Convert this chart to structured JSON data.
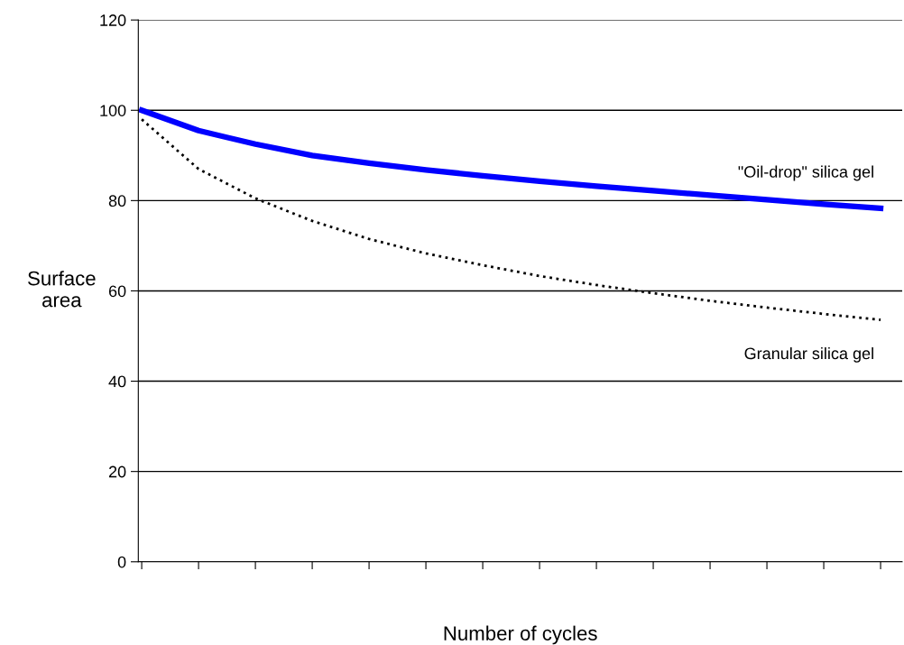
{
  "chart_data": {
    "type": "line",
    "xlabel": "Number of cycles",
    "ylabel": "Surface\narea",
    "categories": [
      null,
      null,
      null,
      null,
      null,
      null,
      null,
      null,
      null,
      null,
      null,
      null,
      null,
      null
    ],
    "series": [
      {
        "name": "\"Oil-drop\" silica gel",
        "color": "#0000ff",
        "line_style": "solid",
        "values": [
          100,
          95.5,
          92.5,
          90,
          88.3,
          86.8,
          85.5,
          84.3,
          83.2,
          82.2,
          81.2,
          80.2,
          79.2,
          78.3
        ]
      },
      {
        "name": "Granular silica gel",
        "color": "#000000",
        "line_style": "dotted",
        "values": [
          98,
          87,
          80.5,
          75.5,
          71.5,
          68.3,
          65.7,
          63.3,
          61.3,
          59.5,
          57.8,
          56.3,
          54.9,
          53.6
        ]
      }
    ],
    "ylim": [
      0,
      120
    ],
    "yticks": [
      0,
      20,
      40,
      60,
      80,
      100,
      120
    ],
    "grid": "y",
    "legend": false,
    "marker": "none",
    "tick_labels": "y"
  }
}
